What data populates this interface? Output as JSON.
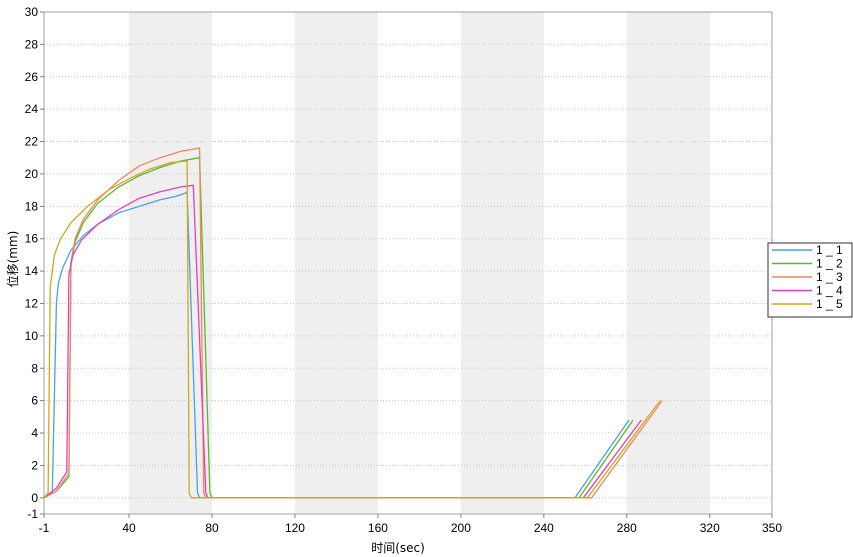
{
  "chart_data": {
    "type": "line",
    "xlabel": "时间(sec)",
    "ylabel": "位移(mm)",
    "xlim": [
      -1,
      350
    ],
    "ylim": [
      -1,
      30
    ],
    "x_ticks": [
      -1,
      40,
      80,
      120,
      160,
      200,
      240,
      280,
      320,
      350
    ],
    "x_tick_labels": [
      "-1",
      "40",
      "80",
      "120",
      "160",
      "200",
      "240",
      "280",
      "320",
      "350"
    ],
    "y_ticks": [
      -1,
      0,
      2,
      4,
      6,
      8,
      10,
      12,
      14,
      16,
      18,
      20,
      22,
      24,
      26,
      28,
      30
    ],
    "y_tick_labels": [
      "-1",
      "0",
      "2",
      "4",
      "6",
      "8",
      "10",
      "12",
      "14",
      "16",
      "18",
      "20",
      "22",
      "24",
      "26",
      "28",
      "30"
    ],
    "shaded_bands_x": [
      [
        40,
        80
      ],
      [
        120,
        160
      ],
      [
        200,
        240
      ],
      [
        280,
        320
      ]
    ],
    "grid": true,
    "legend_position": "right",
    "series": [
      {
        "name": "1 _ 1",
        "color": "#4aa3df",
        "points": [
          [
            -1,
            0
          ],
          [
            3,
            0.3
          ],
          [
            5,
            12
          ],
          [
            6,
            13.3
          ],
          [
            8,
            14.2
          ],
          [
            12,
            15.3
          ],
          [
            18,
            16.2
          ],
          [
            25,
            16.9
          ],
          [
            35,
            17.6
          ],
          [
            45,
            18.0
          ],
          [
            55,
            18.4
          ],
          [
            62,
            18.6
          ],
          [
            67,
            18.8
          ],
          [
            68,
            18.9
          ],
          [
            73,
            0.3
          ],
          [
            74,
            0
          ],
          [
            80,
            0
          ],
          [
            255,
            0
          ],
          [
            281,
            4.8
          ]
        ]
      },
      {
        "name": "1 _ 2",
        "color": "#5cb82e",
        "points": [
          [
            -1,
            0
          ],
          [
            5,
            0.4
          ],
          [
            11,
            1.3
          ],
          [
            12,
            14.5
          ],
          [
            14,
            15.8
          ],
          [
            18,
            17
          ],
          [
            25,
            18.2
          ],
          [
            35,
            19.2
          ],
          [
            45,
            19.9
          ],
          [
            55,
            20.4
          ],
          [
            65,
            20.8
          ],
          [
            74,
            21.0
          ],
          [
            79,
            0.3
          ],
          [
            80,
            0
          ],
          [
            257,
            0
          ],
          [
            283,
            4.8
          ]
        ]
      },
      {
        "name": "1 _ 3",
        "color": "#f0885a",
        "points": [
          [
            -1,
            0
          ],
          [
            5,
            0.4
          ],
          [
            11,
            1.5
          ],
          [
            12,
            14.6
          ],
          [
            14,
            16
          ],
          [
            18,
            17.2
          ],
          [
            25,
            18.4
          ],
          [
            35,
            19.6
          ],
          [
            45,
            20.5
          ],
          [
            55,
            21
          ],
          [
            65,
            21.4
          ],
          [
            74,
            21.6
          ],
          [
            76,
            0.3
          ],
          [
            77,
            0
          ],
          [
            80,
            0
          ],
          [
            263,
            0
          ],
          [
            297,
            6
          ]
        ]
      },
      {
        "name": "1 _ 4",
        "color": "#e040c0",
        "points": [
          [
            -1,
            0
          ],
          [
            5,
            0.6
          ],
          [
            10,
            1.6
          ],
          [
            11,
            13.8
          ],
          [
            13,
            15.0
          ],
          [
            17,
            15.9
          ],
          [
            25,
            16.9
          ],
          [
            35,
            17.8
          ],
          [
            45,
            18.5
          ],
          [
            55,
            18.9
          ],
          [
            65,
            19.2
          ],
          [
            71,
            19.3
          ],
          [
            77,
            0.3
          ],
          [
            78,
            0
          ],
          [
            259,
            0
          ],
          [
            287,
            4.8
          ]
        ]
      },
      {
        "name": "1 _ 5",
        "color": "#d4a520",
        "points": [
          [
            -1,
            0
          ],
          [
            1,
            0.3
          ],
          [
            2,
            13
          ],
          [
            4,
            15
          ],
          [
            7,
            16
          ],
          [
            12,
            17
          ],
          [
            20,
            18
          ],
          [
            30,
            19
          ],
          [
            40,
            19.7
          ],
          [
            50,
            20.3
          ],
          [
            60,
            20.7
          ],
          [
            68,
            20.8
          ],
          [
            69,
            0.3
          ],
          [
            70,
            0
          ],
          [
            80,
            0
          ],
          [
            261,
            0
          ],
          [
            296,
            6
          ]
        ]
      }
    ]
  }
}
